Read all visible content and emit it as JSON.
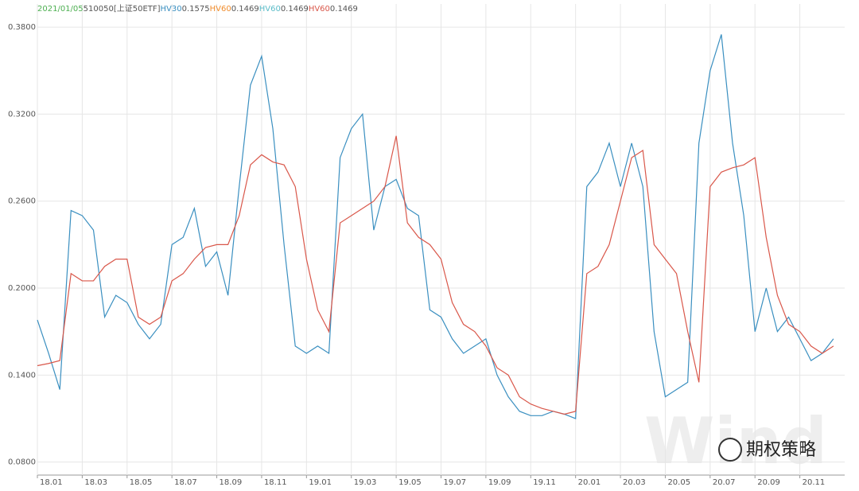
{
  "chart_data": {
    "type": "line",
    "header_date": "2021/01/05",
    "header_label": "510050[上证50ETF]",
    "readouts": [
      {
        "name": "HV30",
        "value": 0.1575,
        "color": "#3a8fc0"
      },
      {
        "name": "HV60",
        "value": 0.1469,
        "color": "#f08c2c"
      },
      {
        "name": "HV60",
        "value": 0.1469,
        "color": "#5bbcc8"
      },
      {
        "name": "HV60",
        "value": 0.1469,
        "color": "#d9574a"
      }
    ],
    "watermark": "Wind",
    "badge": "期权策略",
    "categories": [
      "18.01",
      null,
      null,
      null,
      "18.03",
      null,
      null,
      null,
      "18.05",
      null,
      null,
      null,
      "18.07",
      null,
      null,
      null,
      "18.09",
      null,
      null,
      null,
      "18.11",
      null,
      null,
      null,
      "19.01",
      null,
      null,
      null,
      "19.03",
      null,
      null,
      null,
      "19.05",
      null,
      null,
      null,
      "19.07",
      null,
      null,
      null,
      "19.09",
      null,
      null,
      null,
      "19.11",
      null,
      null,
      null,
      "20.01",
      null,
      null,
      null,
      "20.03",
      null,
      null,
      null,
      "20.05",
      null,
      null,
      null,
      "20.07",
      null,
      null,
      null,
      "20.09",
      null,
      null,
      null,
      "20.11",
      null,
      null,
      null
    ],
    "series": [
      {
        "name": "HV30",
        "color": "#3a8fc0",
        "values": [
          0.178,
          0.155,
          0.13,
          0.2535,
          0.25,
          0.24,
          0.18,
          0.195,
          0.19,
          0.175,
          0.165,
          0.175,
          0.23,
          0.235,
          0.255,
          0.215,
          0.225,
          0.195,
          0.27,
          0.34,
          0.36,
          0.31,
          0.23,
          0.16,
          0.155,
          0.16,
          0.155,
          0.29,
          0.31,
          0.32,
          0.24,
          0.27,
          0.275,
          0.255,
          0.25,
          0.185,
          0.18,
          0.165,
          0.155,
          0.16,
          0.165,
          0.14,
          0.125,
          0.115,
          0.112,
          0.112,
          0.115,
          0.113,
          0.11,
          0.27,
          0.28,
          0.3,
          0.27,
          0.3,
          0.27,
          0.17,
          0.125,
          0.13,
          0.135,
          0.3,
          0.35,
          0.375,
          0.3,
          0.25,
          0.17,
          0.2,
          0.17,
          0.18,
          0.165,
          0.15,
          0.155,
          0.165
        ]
      },
      {
        "name": "HV60",
        "color": "#d9574a",
        "values": [
          0.1465,
          0.148,
          0.15,
          0.21,
          0.205,
          0.205,
          0.215,
          0.22,
          0.22,
          0.18,
          0.175,
          0.18,
          0.205,
          0.21,
          0.22,
          0.228,
          0.23,
          0.23,
          0.25,
          0.285,
          0.292,
          0.287,
          0.285,
          0.27,
          0.22,
          0.185,
          0.17,
          0.245,
          0.25,
          0.255,
          0.26,
          0.27,
          0.305,
          0.245,
          0.235,
          0.23,
          0.22,
          0.19,
          0.175,
          0.17,
          0.16,
          0.145,
          0.14,
          0.125,
          0.12,
          0.117,
          0.115,
          0.113,
          0.115,
          0.21,
          0.215,
          0.23,
          0.26,
          0.29,
          0.295,
          0.23,
          0.22,
          0.21,
          0.17,
          0.135,
          0.27,
          0.28,
          0.283,
          0.285,
          0.29,
          0.235,
          0.195,
          0.175,
          0.17,
          0.16,
          0.155,
          0.16
        ]
      }
    ],
    "ylim": [
      0.071,
      0.396
    ],
    "yticks": [
      {
        "value": 0.08,
        "label": "0.0800"
      },
      {
        "value": 0.14,
        "label": "0.1400"
      },
      {
        "value": 0.2,
        "label": "0.2000"
      },
      {
        "value": 0.26,
        "label": "0.2600"
      },
      {
        "value": 0.32,
        "label": "0.3200"
      },
      {
        "value": 0.38,
        "label": "0.3800"
      }
    ],
    "grid": true
  }
}
